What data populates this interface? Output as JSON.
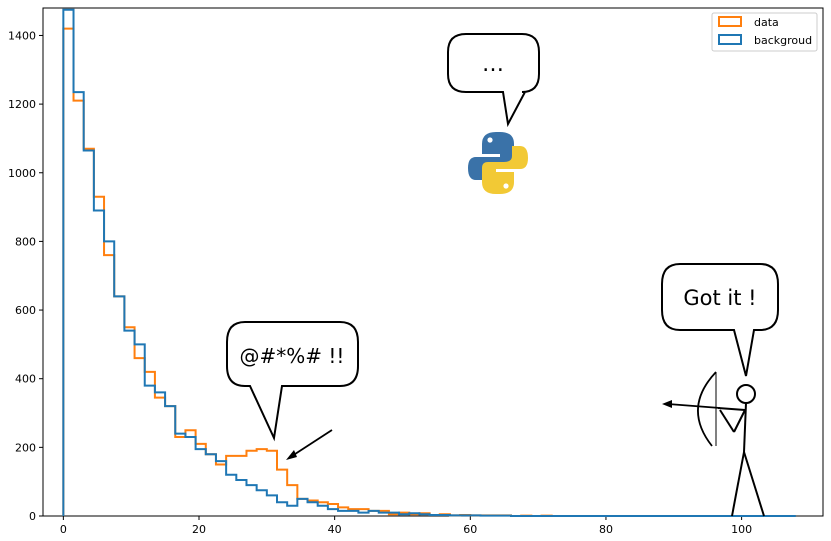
{
  "chart_data": {
    "type": "histogram",
    "bin_width": 1.5,
    "x_start": 0,
    "xlim": [
      -3,
      112
    ],
    "ylim": [
      0,
      1480
    ],
    "xticks": [
      0,
      20,
      40,
      60,
      80,
      100
    ],
    "yticks": [
      0,
      200,
      400,
      600,
      800,
      1000,
      1200,
      1400
    ],
    "grid": false,
    "legend_position": "top-right",
    "series": [
      {
        "name": "data",
        "color": "#ff7f0e",
        "values": [
          1420,
          1210,
          1070,
          930,
          760,
          640,
          550,
          460,
          420,
          345,
          320,
          230,
          250,
          210,
          180,
          150,
          175,
          175,
          190,
          195,
          190,
          135,
          90,
          50,
          45,
          40,
          35,
          25,
          20,
          20,
          15,
          15,
          5,
          10,
          5,
          8,
          3,
          5,
          2,
          3,
          2,
          2,
          2,
          2,
          0,
          1,
          0,
          1,
          0,
          0,
          0,
          0,
          0,
          0,
          0,
          0,
          0,
          0,
          0,
          0,
          0,
          0,
          0,
          0,
          0,
          0,
          0,
          0,
          0,
          0,
          0,
          0
        ]
      },
      {
        "name": "backgroud",
        "color": "#1f77b4",
        "values": [
          1475,
          1235,
          1065,
          890,
          800,
          640,
          540,
          500,
          380,
          360,
          320,
          240,
          230,
          195,
          180,
          160,
          120,
          105,
          90,
          75,
          60,
          40,
          30,
          50,
          40,
          30,
          20,
          15,
          15,
          10,
          15,
          10,
          10,
          5,
          8,
          5,
          3,
          3,
          2,
          2,
          2,
          1,
          1,
          1,
          0,
          0,
          0,
          0,
          0,
          0,
          0,
          0,
          0,
          0,
          0,
          0,
          0,
          0,
          0,
          0,
          0,
          0,
          0,
          0,
          0,
          0,
          0,
          0,
          0,
          0,
          0,
          0
        ]
      }
    ],
    "annotations": {
      "bubble_python": "…",
      "bubble_curse": "@#*%# !!",
      "bubble_archer": "Got it !"
    }
  }
}
